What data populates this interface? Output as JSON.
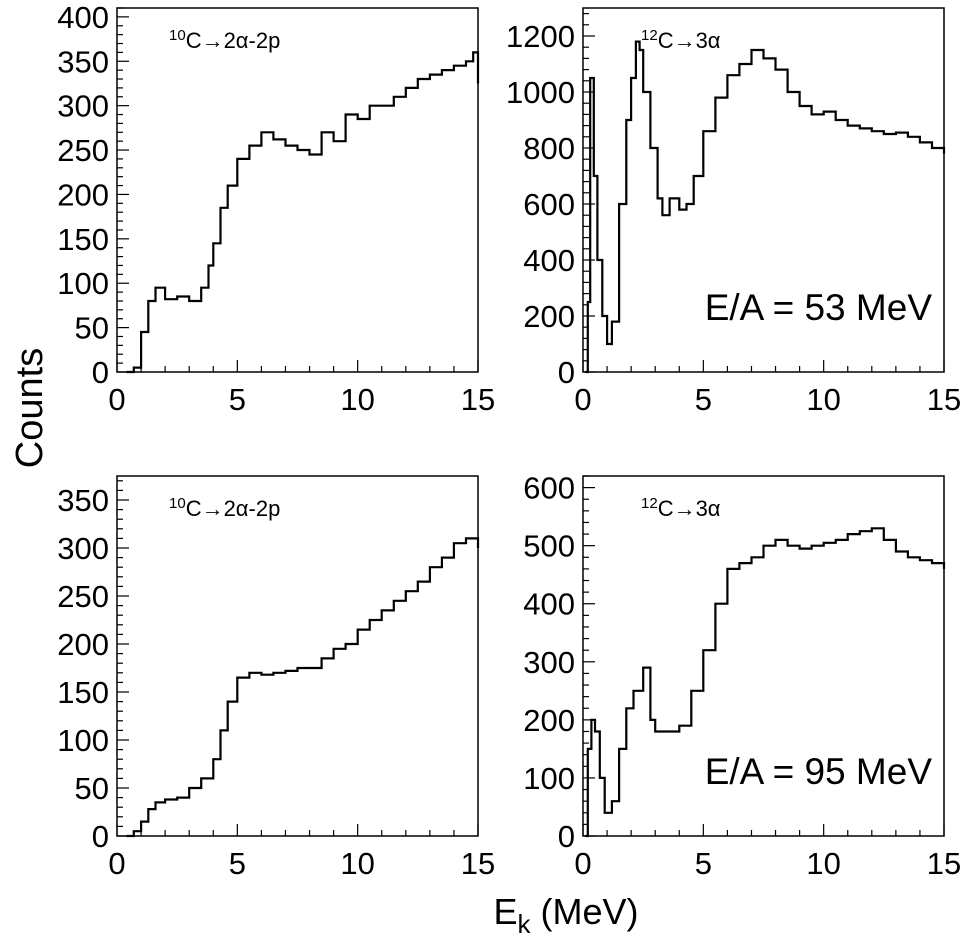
{
  "ylabel": "Counts",
  "xlabel_main": "E",
  "xlabel_sub": "k",
  "xlabel_unit": "(MeV)",
  "chart_data": [
    {
      "type": "line",
      "reaction_sup": "10",
      "reaction_text": "C→2α-2p",
      "energy_label": "",
      "xlim": [
        0,
        15
      ],
      "ylim": [
        0,
        410
      ],
      "xticks": [
        "0",
        "5",
        "10",
        "15"
      ],
      "yticks": [
        "0",
        "50",
        "100",
        "150",
        "200",
        "250",
        "300",
        "350",
        "400"
      ],
      "series": [
        {
          "x": [
            0.4,
            0.7,
            1.0,
            1.3,
            1.6,
            2.0,
            2.5,
            3.0,
            3.5,
            3.8,
            4.0,
            4.3,
            4.6,
            5.0,
            5.5,
            6.0,
            6.5,
            7.0,
            7.5,
            8.0,
            8.5,
            9.0,
            9.5,
            10.0,
            10.5,
            11.0,
            11.5,
            12.0,
            12.5,
            13.0,
            13.5,
            14.0,
            14.5,
            14.8,
            15.0
          ],
          "y": [
            0,
            5,
            45,
            80,
            95,
            82,
            85,
            80,
            95,
            120,
            145,
            185,
            210,
            240,
            255,
            270,
            262,
            255,
            250,
            245,
            270,
            260,
            290,
            285,
            300,
            300,
            310,
            320,
            330,
            335,
            340,
            345,
            350,
            360,
            325
          ]
        }
      ]
    },
    {
      "type": "line",
      "reaction_sup": "12",
      "reaction_text": "C→3α",
      "energy_label": "E/A = 53 MeV",
      "xlim": [
        0,
        15
      ],
      "ylim": [
        0,
        1300
      ],
      "xticks": [
        "0",
        "5",
        "10",
        "15"
      ],
      "yticks": [
        "0",
        "200",
        "400",
        "600",
        "800",
        "1000",
        "1200"
      ],
      "series": [
        {
          "x": [
            0.1,
            0.2,
            0.3,
            0.45,
            0.6,
            0.8,
            1.0,
            1.2,
            1.5,
            1.8,
            2.0,
            2.2,
            2.35,
            2.5,
            2.8,
            3.1,
            3.3,
            3.6,
            4.0,
            4.3,
            4.6,
            5.0,
            5.5,
            6.0,
            6.5,
            7.0,
            7.5,
            8.0,
            8.5,
            9.0,
            9.5,
            10.0,
            10.5,
            11.0,
            11.5,
            12.0,
            12.5,
            13.0,
            13.5,
            14.0,
            14.5,
            15.0
          ],
          "y": [
            0,
            250,
            1050,
            700,
            400,
            200,
            100,
            180,
            600,
            900,
            1050,
            1180,
            1150,
            1000,
            800,
            620,
            560,
            620,
            580,
            600,
            700,
            860,
            980,
            1060,
            1100,
            1150,
            1120,
            1080,
            1000,
            950,
            920,
            930,
            900,
            880,
            870,
            860,
            850,
            855,
            840,
            820,
            800,
            780
          ]
        }
      ]
    },
    {
      "type": "line",
      "reaction_sup": "10",
      "reaction_text": "C→2α-2p",
      "energy_label": "",
      "xlim": [
        0,
        15
      ],
      "ylim": [
        0,
        375
      ],
      "xticks": [
        "0",
        "5",
        "10",
        "15"
      ],
      "yticks": [
        "0",
        "50",
        "100",
        "150",
        "200",
        "250",
        "300",
        "350"
      ],
      "series": [
        {
          "x": [
            0.4,
            0.7,
            1.0,
            1.3,
            1.6,
            2.0,
            2.5,
            3.0,
            3.5,
            4.0,
            4.3,
            4.6,
            5.0,
            5.5,
            6.0,
            6.5,
            7.0,
            7.5,
            8.0,
            8.5,
            9.0,
            9.5,
            10.0,
            10.5,
            11.0,
            11.5,
            12.0,
            12.5,
            13.0,
            13.5,
            14.0,
            14.5,
            15.0
          ],
          "y": [
            0,
            5,
            15,
            28,
            35,
            38,
            40,
            50,
            60,
            80,
            110,
            140,
            165,
            170,
            168,
            170,
            172,
            175,
            175,
            185,
            195,
            200,
            215,
            225,
            235,
            245,
            255,
            265,
            280,
            290,
            305,
            310,
            300
          ]
        }
      ]
    },
    {
      "type": "line",
      "reaction_sup": "12",
      "reaction_text": "C→3α",
      "energy_label": "E/A = 95 MeV",
      "xlim": [
        0,
        15
      ],
      "ylim": [
        0,
        620
      ],
      "xticks": [
        "0",
        "5",
        "10",
        "15"
      ],
      "yticks": [
        "0",
        "100",
        "200",
        "300",
        "400",
        "500",
        "600"
      ],
      "series": [
        {
          "x": [
            0.1,
            0.2,
            0.35,
            0.5,
            0.7,
            0.9,
            1.2,
            1.5,
            1.8,
            2.1,
            2.5,
            2.8,
            3.0,
            3.5,
            4.0,
            4.5,
            5.0,
            5.5,
            6.0,
            6.5,
            7.0,
            7.5,
            8.0,
            8.5,
            9.0,
            9.5,
            10.0,
            10.5,
            11.0,
            11.5,
            12.0,
            12.5,
            13.0,
            13.5,
            14.0,
            14.5,
            15.0
          ],
          "y": [
            0,
            150,
            200,
            180,
            100,
            40,
            60,
            150,
            220,
            250,
            290,
            200,
            180,
            180,
            190,
            250,
            320,
            400,
            460,
            470,
            480,
            500,
            510,
            500,
            495,
            500,
            505,
            510,
            520,
            525,
            530,
            510,
            490,
            480,
            475,
            470,
            460
          ]
        }
      ]
    }
  ]
}
